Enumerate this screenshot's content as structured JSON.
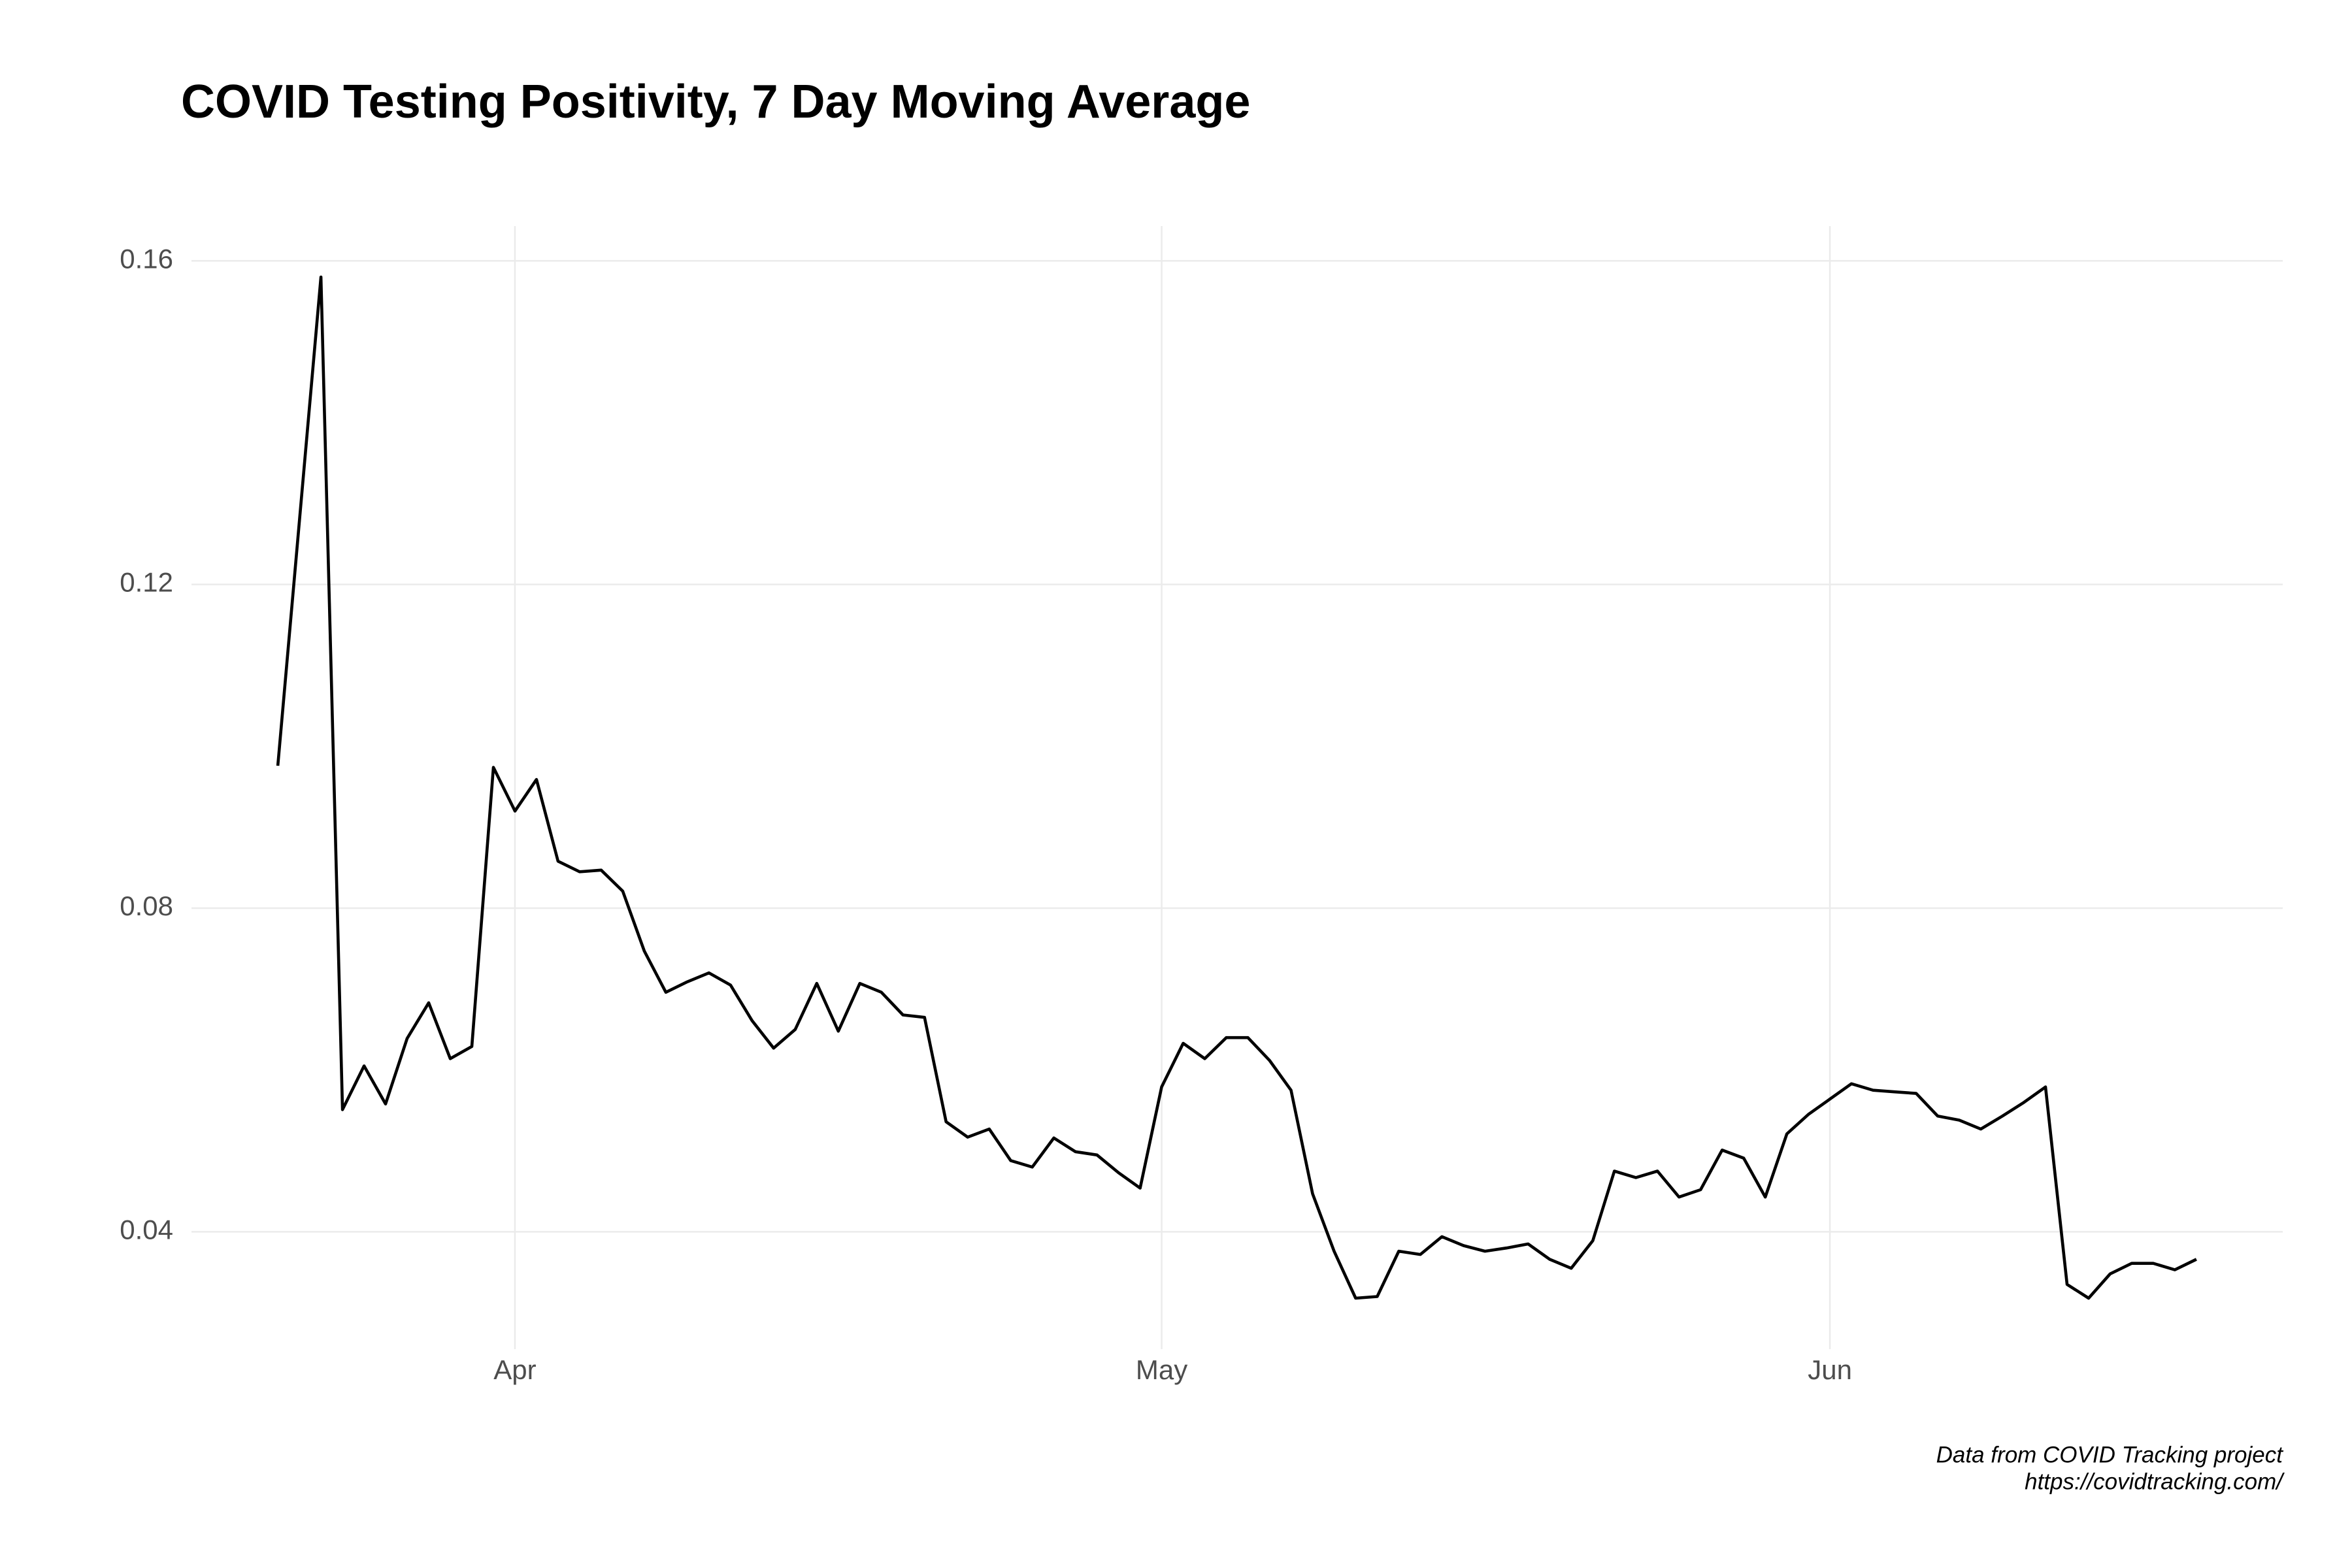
{
  "chart_data": {
    "type": "line",
    "title": "COVID Testing Positivity, 7 Day Moving Average",
    "caption": [
      "Data from COVID Tracking project",
      "https://covidtracking.com/"
    ],
    "categories": [
      null,
      null,
      null,
      null,
      null,
      null,
      null,
      null,
      null,
      null,
      null,
      "Apr",
      null,
      null,
      null,
      null,
      null,
      null,
      null,
      null,
      null,
      null,
      null,
      null,
      null,
      null,
      null,
      null,
      null,
      null,
      null,
      null,
      null,
      null,
      null,
      null,
      null,
      null,
      null,
      null,
      null,
      "May",
      null,
      null,
      null,
      null,
      null,
      null,
      null,
      null,
      null,
      null,
      null,
      null,
      null,
      null,
      null,
      null,
      null,
      null,
      null,
      null,
      null,
      null,
      null,
      null,
      null,
      null,
      null,
      null,
      null,
      null,
      "Jun",
      null,
      null,
      null,
      null,
      null,
      null,
      null,
      null,
      null,
      null,
      null,
      null,
      null,
      null,
      null,
      null,
      null
    ],
    "series": [
      {
        "color": "#000000",
        "values": [
          0.0976,
          0.1278,
          0.158,
          0.0551,
          0.0605,
          0.0558,
          0.0639,
          0.0683,
          0.0614,
          0.0629,
          0.0974,
          0.092,
          0.0959,
          0.0858,
          0.0845,
          0.0847,
          0.0821,
          0.0747,
          0.0696,
          0.0709,
          0.072,
          0.0705,
          0.0661,
          0.0627,
          0.065,
          0.0707,
          0.0648,
          0.0707,
          0.0696,
          0.0668,
          0.0665,
          0.0536,
          0.0517,
          0.0527,
          0.0488,
          0.048,
          0.0516,
          0.0499,
          0.0495,
          0.0473,
          0.0454,
          0.0579,
          0.0633,
          0.0614,
          0.064,
          0.064,
          0.0612,
          0.0575,
          0.0447,
          0.0376,
          0.0318,
          0.032,
          0.0376,
          0.0372,
          0.0394,
          0.0383,
          0.0376,
          0.038,
          0.0385,
          0.0366,
          0.0355,
          0.0389,
          0.0475,
          0.0467,
          0.0475,
          0.0443,
          0.0452,
          0.0501,
          0.0491,
          0.0443,
          0.0521,
          0.0545,
          0.0564,
          0.0583,
          0.0575,
          0.0573,
          0.0571,
          0.0543,
          0.0538,
          0.0527,
          0.0543,
          0.056,
          0.0579,
          0.0335,
          0.0318,
          0.0348,
          0.0361,
          0.0361,
          0.0353,
          0.0366
        ]
      }
    ],
    "ylim": [
      0.0255,
      0.1643
    ],
    "yticks": [
      0.04,
      0.08,
      0.12,
      0.16
    ],
    "grid": true
  }
}
